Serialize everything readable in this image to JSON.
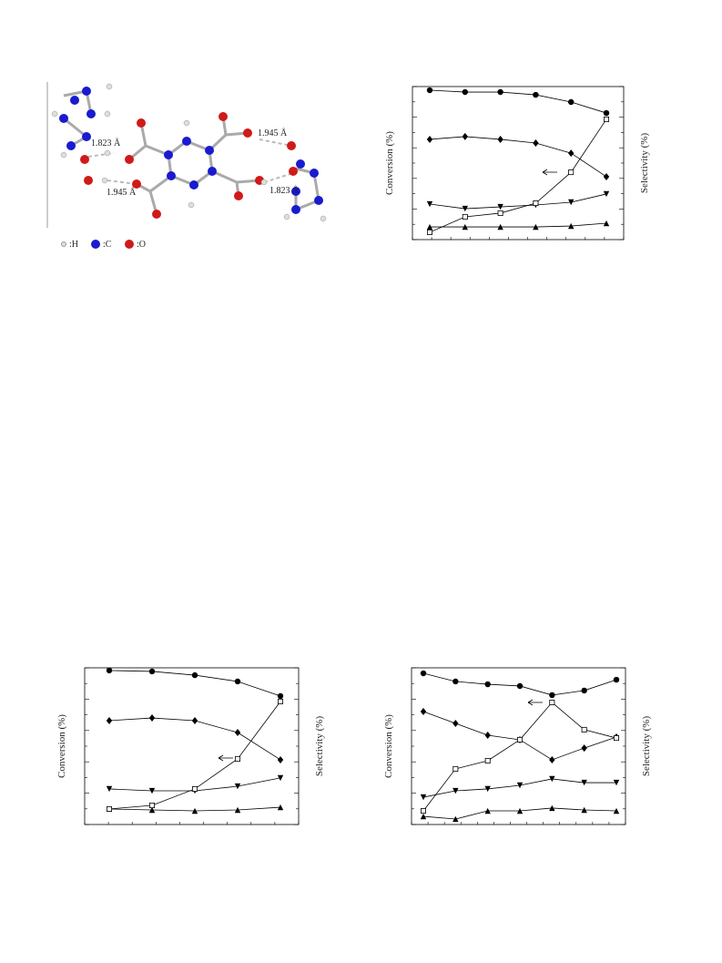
{
  "figure": {
    "distances": [
      "1.823 Å",
      "1.945 Å",
      "1.945 Å",
      "1.823 Å"
    ],
    "legend": [
      ":H",
      ":C",
      ":O"
    ]
  },
  "chart_data": [
    {
      "type": "line",
      "ylabel": "Conversion (%)",
      "y2label": "Selectivity (%)",
      "ylim": [
        0,
        100
      ],
      "y2lim": [
        0,
        100
      ],
      "categories": [
        null,
        null,
        null,
        null,
        null,
        null
      ],
      "series": [
        {
          "marker": "circle",
          "color": "#000",
          "axis": "y2",
          "values": [
            97.6,
            96.4,
            96.4,
            94.6,
            89.9,
            82.7
          ]
        },
        {
          "marker": "diamond",
          "color": "#000",
          "axis": "y2",
          "values": [
            65.5,
            67.3,
            65.5,
            63.1,
            56.5,
            41.1
          ]
        },
        {
          "marker": "triangle-down",
          "color": "#000",
          "axis": "y2",
          "values": [
            23.2,
            20.2,
            21.4,
            22.6,
            24.4,
            29.8
          ]
        },
        {
          "marker": "triangle-up",
          "color": "#000",
          "axis": "y2",
          "values": [
            8.3,
            8.3,
            8.3,
            8.3,
            8.9,
            10.7
          ]
        },
        {
          "marker": "square-open",
          "color": "#000",
          "values": [
            4.8,
            14.9,
            17.3,
            23.8,
            44.0,
            78.6
          ]
        }
      ]
    },
    {
      "type": "line",
      "ylabel": "Conversion (%)",
      "y2label": "Selectivity (%)",
      "ylim": [
        0,
        100
      ],
      "y2lim": [
        0,
        100
      ],
      "categories": [
        null,
        null,
        null,
        null,
        null
      ],
      "series": [
        {
          "marker": "circle",
          "color": "#000",
          "axis": "y2",
          "values": [
            98.3,
            97.7,
            95.3,
            91.3,
            82.0
          ]
        },
        {
          "marker": "diamond",
          "color": "#000",
          "axis": "y2",
          "values": [
            66.3,
            68.0,
            66.3,
            58.7,
            41.3
          ]
        },
        {
          "marker": "triangle-down",
          "color": "#000",
          "axis": "y2",
          "values": [
            22.7,
            21.5,
            21.5,
            24.4,
            29.7
          ]
        },
        {
          "marker": "triangle-up",
          "color": "#000",
          "axis": "y2",
          "values": [
            9.9,
            9.3,
            8.7,
            9.3,
            11.0
          ]
        },
        {
          "marker": "square-open",
          "color": "#000",
          "values": [
            9.9,
            12.2,
            22.7,
            41.9,
            78.5
          ]
        }
      ]
    },
    {
      "type": "line",
      "ylabel": "Conversion (%)",
      "y2label": "Selectivity (%)",
      "ylim": [
        0,
        100
      ],
      "y2lim": [
        0,
        100
      ],
      "categories": [
        null,
        null,
        null,
        null,
        null,
        null,
        null
      ],
      "series": [
        {
          "marker": "circle",
          "color": "#000",
          "axis": "y2",
          "values": [
            96.5,
            91.3,
            89.5,
            88.4,
            82.6,
            85.5,
            92.4
          ]
        },
        {
          "marker": "diamond",
          "color": "#000",
          "axis": "y2",
          "values": [
            72.1,
            64.5,
            57.0,
            54.1,
            41.3,
            48.8,
            55.8
          ]
        },
        {
          "marker": "triangle-down",
          "color": "#000",
          "axis": "y2",
          "values": [
            17.4,
            21.5,
            22.7,
            25.0,
            29.1,
            26.7,
            26.7
          ]
        },
        {
          "marker": "triangle-up",
          "color": "#000",
          "axis": "y2",
          "values": [
            5.2,
            3.5,
            8.7,
            8.7,
            10.5,
            9.3,
            8.7
          ]
        },
        {
          "marker": "square-open",
          "color": "#000",
          "values": [
            8.7,
            35.5,
            40.7,
            54.1,
            77.9,
            60.5,
            55.2
          ]
        }
      ]
    }
  ]
}
